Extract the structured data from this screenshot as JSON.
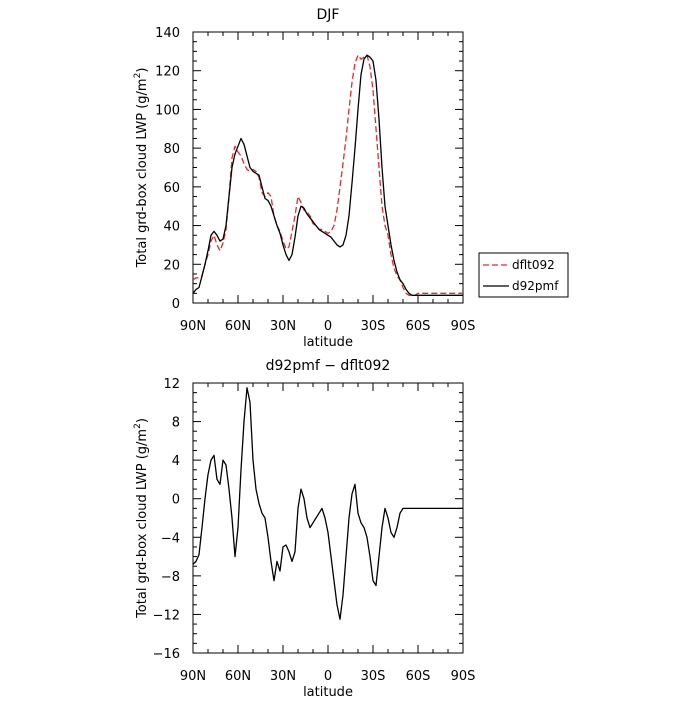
{
  "chart_data": [
    {
      "type": "line",
      "title": "DJF",
      "xlabel": "latitude",
      "ylabel": "Total grd-box cloud LWP (g/m",
      "ylabel_sup": "2",
      "ylabel_close": ")",
      "xlim": [
        90,
        -90
      ],
      "ylim": [
        0,
        140
      ],
      "xticks": [
        {
          "value": 90,
          "label": "90N"
        },
        {
          "value": 60,
          "label": "60N"
        },
        {
          "value": 30,
          "label": "30N"
        },
        {
          "value": 0,
          "label": "0"
        },
        {
          "value": -30,
          "label": "30S"
        },
        {
          "value": -60,
          "label": "60S"
        },
        {
          "value": -90,
          "label": "90S"
        }
      ],
      "yticks": [
        {
          "value": 0,
          "label": "0"
        },
        {
          "value": 20,
          "label": "20"
        },
        {
          "value": 40,
          "label": "40"
        },
        {
          "value": 60,
          "label": "60"
        },
        {
          "value": 80,
          "label": "80"
        },
        {
          "value": 100,
          "label": "100"
        },
        {
          "value": 120,
          "label": "120"
        },
        {
          "value": 140,
          "label": "140"
        }
      ],
      "legend": {
        "placement": "right",
        "entries": [
          "dflt092",
          "d92pmf"
        ]
      },
      "series": [
        {
          "name": "dflt092",
          "color": "#e8282b",
          "dash": "dashed",
          "x": [
            90,
            88,
            86,
            84,
            82,
            80,
            78,
            76,
            74,
            72,
            70,
            68,
            66,
            64,
            62,
            60,
            58,
            56,
            54,
            52,
            50,
            48,
            46,
            44,
            42,
            40,
            38,
            36,
            34,
            32,
            30,
            28,
            26,
            24,
            22,
            20,
            18,
            16,
            14,
            12,
            10,
            8,
            6,
            4,
            2,
            0,
            -2,
            -4,
            -6,
            -8,
            -10,
            -12,
            -14,
            -16,
            -18,
            -20,
            -22,
            -24,
            -26,
            -28,
            -30,
            -32,
            -34,
            -36,
            -38,
            -40,
            -42,
            -44,
            -46,
            -48,
            -50,
            -52,
            -54,
            -56,
            -58,
            -60,
            -62,
            -64,
            -66,
            -68,
            -70,
            -72,
            -74,
            -76,
            -78,
            -80,
            -82,
            -84,
            -86,
            -88,
            -90
          ],
          "y": [
            12,
            13,
            13,
            14,
            20,
            25,
            32,
            35,
            30,
            27,
            31,
            38,
            55,
            75,
            81,
            78,
            76,
            72,
            69,
            68,
            69,
            68,
            65,
            57,
            55,
            57,
            55,
            45,
            40,
            37,
            32,
            28,
            29,
            37,
            45,
            55,
            52,
            48,
            47,
            45,
            41,
            40,
            38,
            38,
            37,
            36,
            37,
            40,
            48,
            60,
            72,
            85,
            100,
            114,
            124,
            128,
            126,
            127,
            128,
            122,
            110,
            90,
            70,
            50,
            40,
            35,
            25,
            18,
            14,
            12,
            8,
            5,
            4,
            4,
            4,
            5,
            5,
            5,
            5,
            5,
            5,
            5,
            5,
            5,
            5,
            5,
            5,
            5,
            5,
            5,
            5
          ]
        },
        {
          "name": "d92pmf",
          "color": "#000000",
          "dash": "solid",
          "x": [
            90,
            88,
            86,
            84,
            82,
            80,
            78,
            76,
            74,
            72,
            70,
            68,
            66,
            64,
            62,
            60,
            58,
            56,
            54,
            52,
            50,
            48,
            46,
            44,
            42,
            40,
            38,
            36,
            34,
            32,
            30,
            28,
            26,
            24,
            22,
            20,
            18,
            16,
            14,
            12,
            10,
            8,
            6,
            4,
            2,
            0,
            -2,
            -4,
            -6,
            -8,
            -10,
            -12,
            -14,
            -16,
            -18,
            -20,
            -22,
            -24,
            -26,
            -28,
            -30,
            -32,
            -34,
            -36,
            -38,
            -40,
            -42,
            -44,
            -46,
            -48,
            -50,
            -52,
            -54,
            -56,
            -58,
            -60,
            -62,
            -64,
            -66,
            -68,
            -70,
            -72,
            -74,
            -76,
            -78,
            -80,
            -82,
            -84,
            -86,
            -88,
            -90
          ],
          "y": [
            5,
            7,
            8,
            14,
            20,
            27,
            35,
            37,
            35,
            32,
            33,
            40,
            55,
            70,
            77,
            81,
            85,
            82,
            76,
            70,
            68,
            67,
            66,
            60,
            54,
            53,
            50,
            45,
            40,
            36,
            30,
            25,
            22,
            25,
            34,
            45,
            50,
            49,
            46,
            44,
            42,
            40,
            38,
            37,
            36,
            35,
            34,
            32,
            30,
            29,
            30,
            35,
            45,
            62,
            80,
            100,
            118,
            126,
            128,
            127,
            125,
            115,
            95,
            70,
            50,
            40,
            30,
            22,
            16,
            12,
            10,
            7,
            5,
            4,
            4,
            4,
            4,
            4,
            4,
            4,
            4,
            4,
            4,
            4,
            4,
            4,
            4,
            4,
            4,
            4,
            4
          ]
        }
      ]
    },
    {
      "type": "line",
      "title": "d92pmf − dflt092",
      "xlabel": "latitude",
      "ylabel": "Total grd-box cloud LWP (g/m",
      "ylabel_sup": "2",
      "ylabel_close": ")",
      "xlim": [
        90,
        -90
      ],
      "ylim": [
        -16,
        12
      ],
      "xticks": [
        {
          "value": 90,
          "label": "90N"
        },
        {
          "value": 60,
          "label": "60N"
        },
        {
          "value": 30,
          "label": "30N"
        },
        {
          "value": 0,
          "label": "0"
        },
        {
          "value": -30,
          "label": "30S"
        },
        {
          "value": -60,
          "label": "60S"
        },
        {
          "value": -90,
          "label": "90S"
        }
      ],
      "yticks": [
        {
          "value": 12,
          "label": "12"
        },
        {
          "value": 8,
          "label": "8"
        },
        {
          "value": 4,
          "label": "4"
        },
        {
          "value": 0,
          "label": "0"
        },
        {
          "value": -4,
          "label": "−4"
        },
        {
          "value": -8,
          "label": "−8"
        },
        {
          "value": -12,
          "label": "−12"
        },
        {
          "value": -16,
          "label": "−16"
        }
      ],
      "series": [
        {
          "color": "#000000",
          "dash": "solid",
          "x": [
            90,
            88,
            86,
            84,
            82,
            80,
            78,
            76,
            74,
            72,
            70,
            68,
            66,
            64,
            62,
            60,
            58,
            56,
            54,
            52,
            50,
            48,
            46,
            44,
            42,
            40,
            38,
            36,
            34,
            32,
            30,
            28,
            26,
            24,
            22,
            20,
            18,
            16,
            14,
            12,
            10,
            8,
            6,
            4,
            2,
            0,
            -2,
            -4,
            -6,
            -8,
            -10,
            -12,
            -14,
            -16,
            -18,
            -20,
            -22,
            -24,
            -26,
            -28,
            -30,
            -32,
            -34,
            -36,
            -38,
            -40,
            -42,
            -44,
            -46,
            -48,
            -50,
            -52,
            -54,
            -56,
            -58,
            -60,
            -62,
            -64,
            -66,
            -68,
            -70,
            -72,
            -74,
            -76,
            -78,
            -80,
            -82,
            -84,
            -86,
            -88,
            -90
          ],
          "y": [
            -6.8,
            -6.5,
            -5.8,
            -3.0,
            0.0,
            2.5,
            4.0,
            4.5,
            2.0,
            1.5,
            4.0,
            3.5,
            1.0,
            -2.0,
            -6.0,
            -3.0,
            3.0,
            8.0,
            11.5,
            10.0,
            4.0,
            1.0,
            -0.5,
            -1.5,
            -2.0,
            -4.0,
            -6.5,
            -8.5,
            -6.5,
            -7.5,
            -5.0,
            -4.8,
            -5.5,
            -6.5,
            -5.5,
            -1.0,
            1.0,
            0.0,
            -2.0,
            -3.0,
            -2.5,
            -2.0,
            -1.5,
            -1.0,
            -2.0,
            -3.5,
            -6.0,
            -8.5,
            -11.0,
            -12.5,
            -10.0,
            -6.0,
            -2.0,
            0.5,
            1.5,
            -1.5,
            -2.5,
            -3.0,
            -4.0,
            -6.0,
            -8.5,
            -9.0,
            -6.0,
            -3.0,
            -1.0,
            -2.0,
            -3.5,
            -4.0,
            -3.0,
            -1.5,
            -1.0,
            -1.0,
            -1.0,
            -1.0,
            -1.0,
            -1.0,
            -1.0,
            -1.0,
            -1.0,
            -1.0,
            -1.0,
            -1.0,
            -1.0,
            -1.0,
            -1.0,
            -1.0,
            -1.0,
            -1.0,
            -1.0,
            -1.0,
            -1.0
          ]
        }
      ]
    }
  ]
}
